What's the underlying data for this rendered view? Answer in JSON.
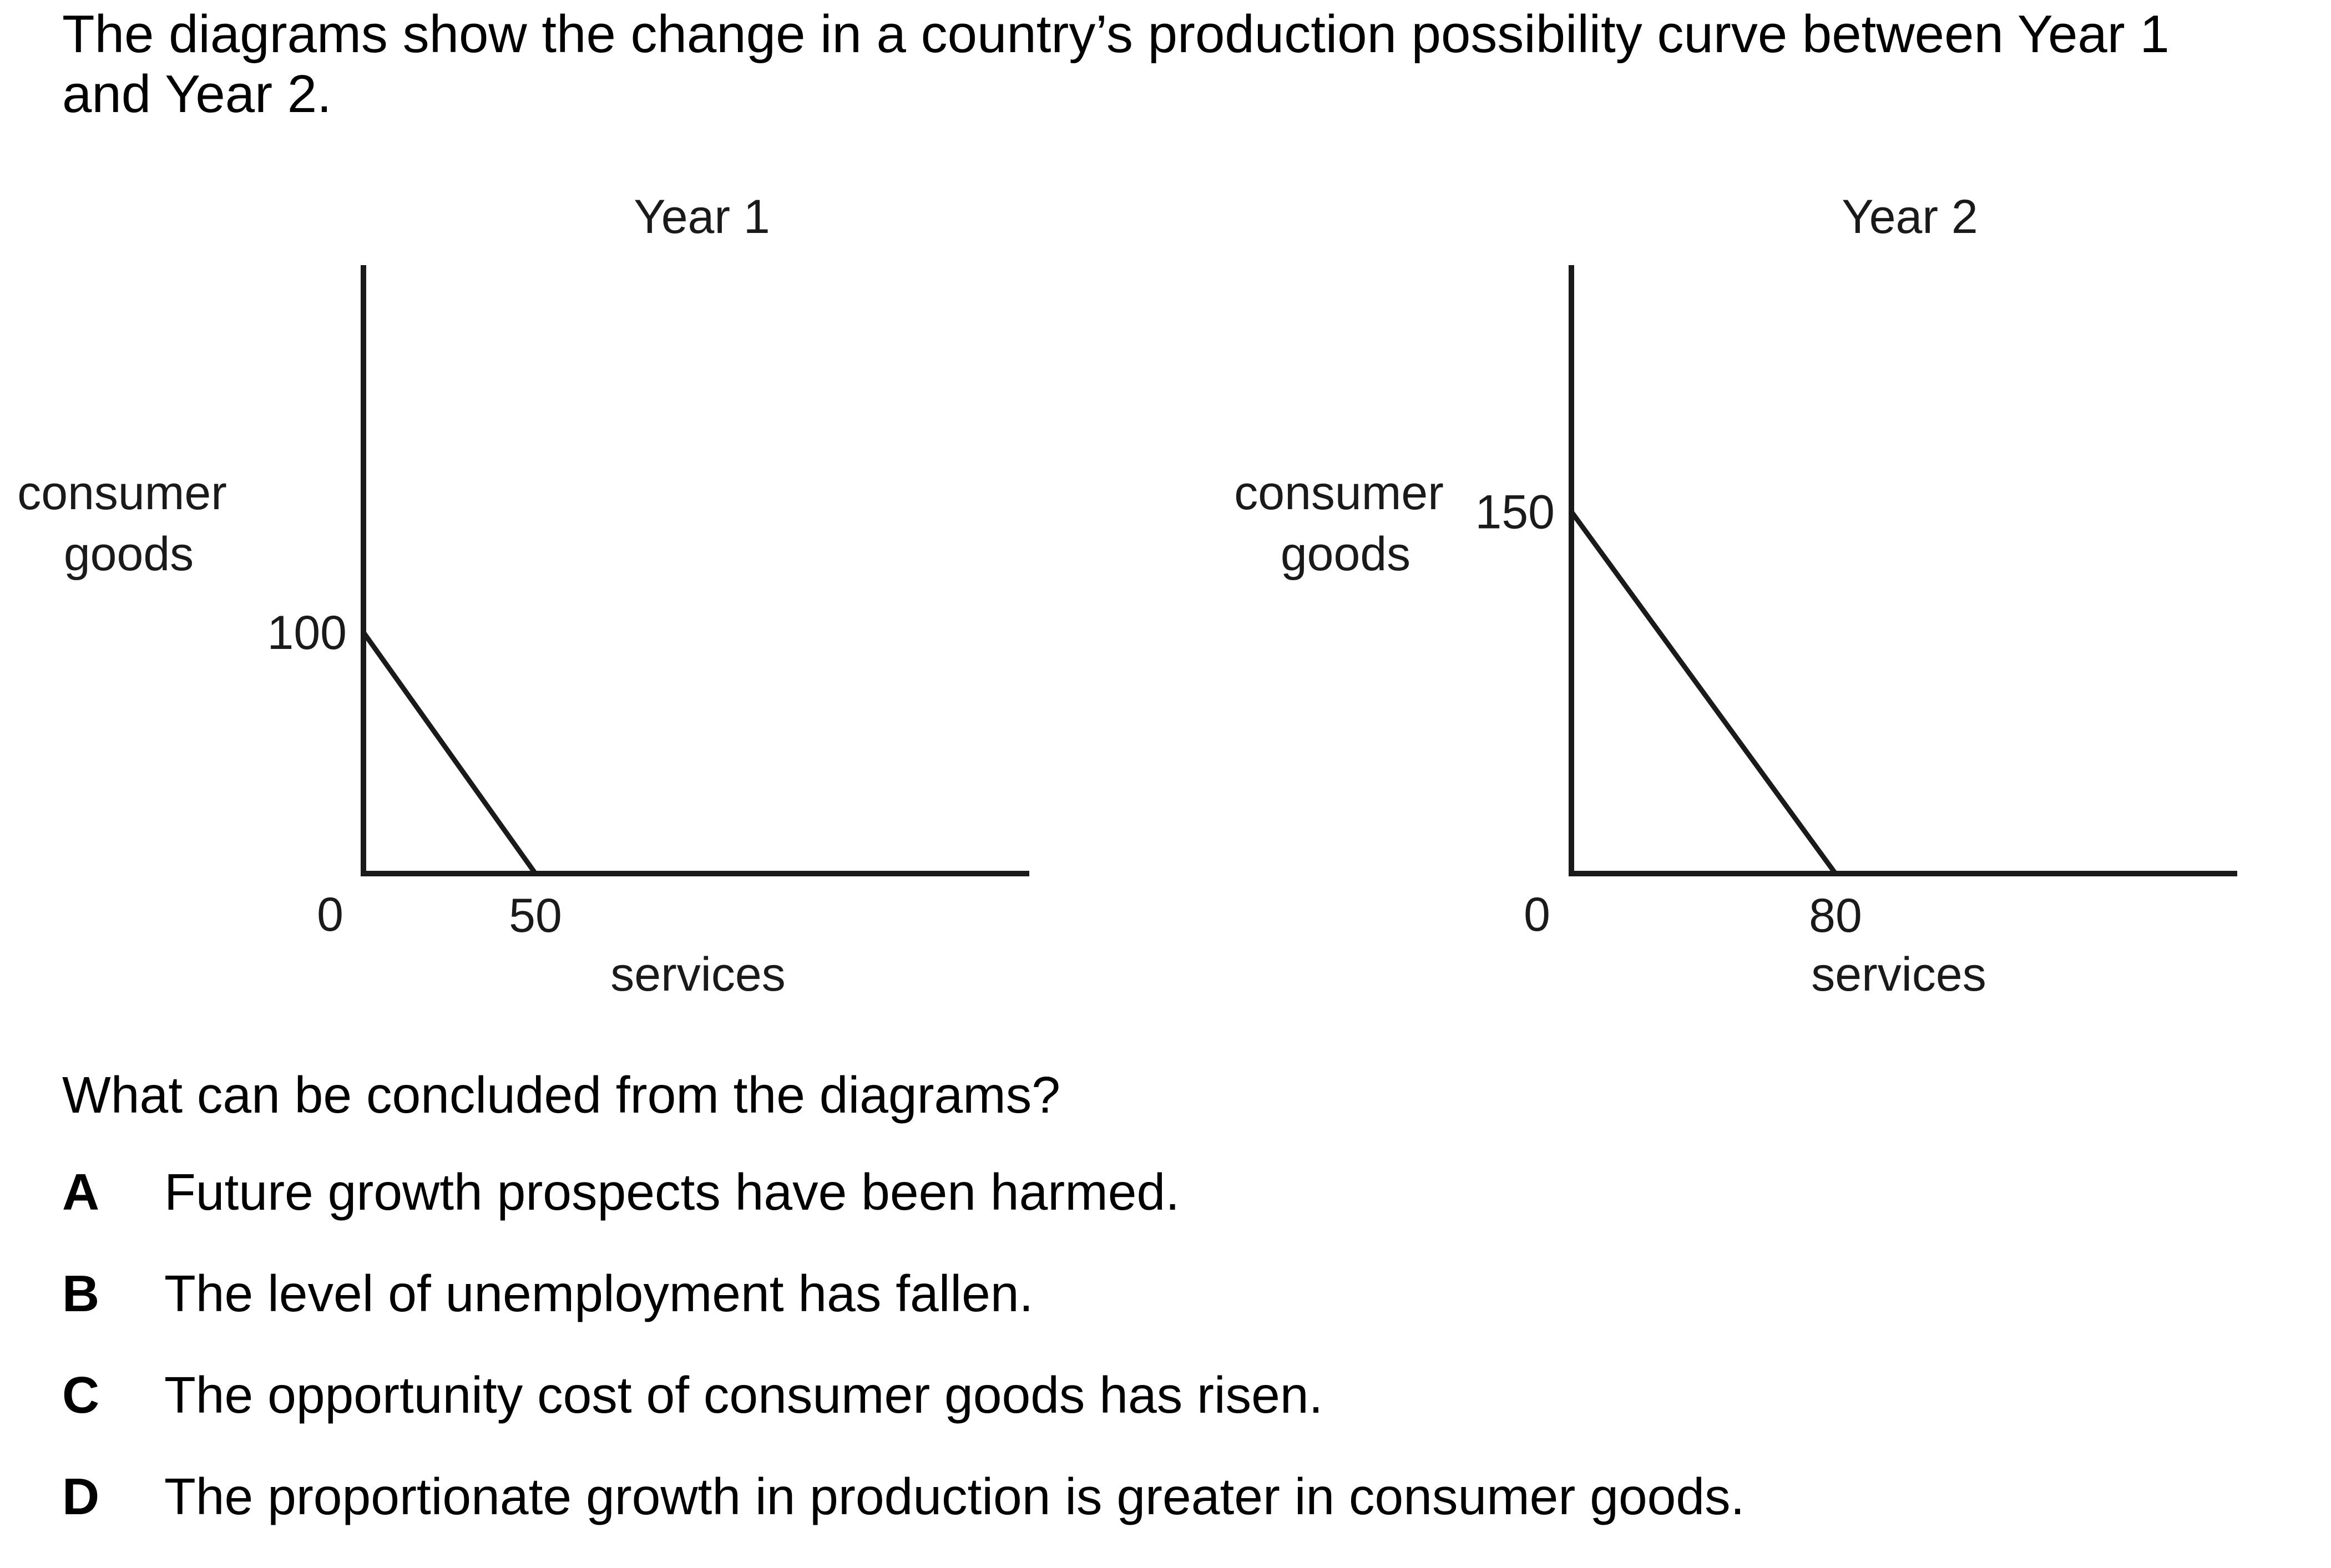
{
  "intro_text": "The diagrams show the change in a country’s production possibility curve between Year 1 and Year 2.",
  "chart_data": [
    {
      "type": "line",
      "title": "Year 1",
      "xlabel": "services",
      "ylabel": "consumer goods",
      "origin_label": "0",
      "x_intercept": 50,
      "y_intercept": 100,
      "x_label": "50",
      "y_label": "100",
      "series": [
        {
          "x": [
            0,
            50
          ],
          "y": [
            100,
            0
          ]
        }
      ],
      "xlim": [
        0,
        190
      ],
      "ylim": [
        0,
        220
      ]
    },
    {
      "type": "line",
      "title": "Year 2",
      "xlabel": "services",
      "ylabel": "consumer goods",
      "origin_label": "0",
      "x_intercept": 80,
      "y_intercept": 150,
      "x_label": "80",
      "y_label": "150",
      "series": [
        {
          "x": [
            0,
            80
          ],
          "y": [
            150,
            0
          ]
        }
      ],
      "xlim": [
        0,
        200
      ],
      "ylim": [
        0,
        220
      ]
    }
  ],
  "question": "What can be concluded from the diagrams?",
  "options": [
    {
      "letter": "A",
      "text": "Future growth prospects have been harmed."
    },
    {
      "letter": "B",
      "text": "The level of unemployment has fallen."
    },
    {
      "letter": "C",
      "text": "The opportunity cost of consumer goods has risen."
    },
    {
      "letter": "D",
      "text": "The proportionate growth in production is greater in consumer goods."
    }
  ]
}
